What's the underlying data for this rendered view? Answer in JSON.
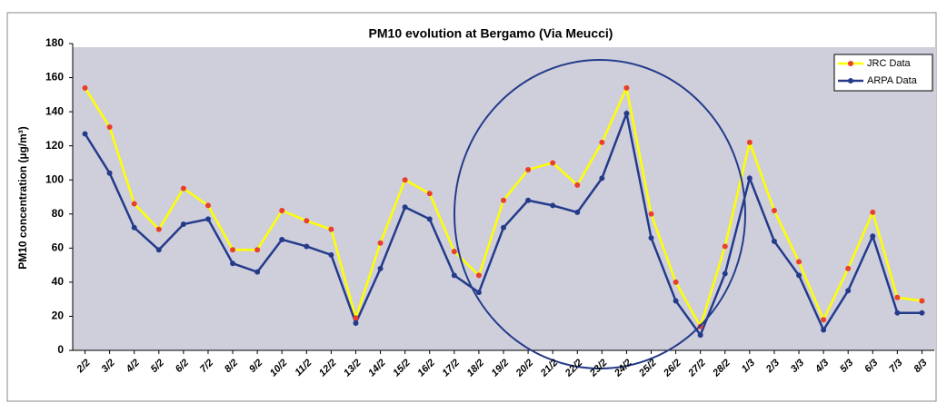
{
  "chart_data": {
    "type": "line",
    "title": "PM10 evolution at Bergamo (Via Meucci)",
    "y_label": "PM10 concentration (µg/m³)",
    "categories": [
      "2/2",
      "3/2",
      "4/2",
      "5/2",
      "6/2",
      "7/2",
      "8/2",
      "9/2",
      "10/2",
      "11/2",
      "12/2",
      "13/2",
      "14/2",
      "15/2",
      "16/2",
      "17/2",
      "18/2",
      "19/2",
      "20/2",
      "21/2",
      "22/2",
      "23/2",
      "24/2",
      "25/2",
      "26/2",
      "27/2",
      "28/2",
      "1/3",
      "2/3",
      "3/3",
      "4/3",
      "5/3",
      "6/3",
      "7/3",
      "8/3"
    ],
    "series": [
      {
        "name": "JRC Data",
        "color": "#ffff00",
        "marker_color": "#e8402a",
        "values": [
          154,
          131,
          86,
          71,
          95,
          85,
          59,
          59,
          82,
          76,
          71,
          19,
          63,
          100,
          92,
          58,
          44,
          88,
          106,
          110,
          97,
          122,
          154,
          80,
          40,
          14,
          61,
          122,
          82,
          52,
          18,
          48,
          81,
          31,
          29
        ]
      },
      {
        "name": "ARPA Data",
        "color": "#243b8a",
        "marker_color": "#243b8a",
        "values": [
          127,
          104,
          72,
          59,
          74,
          77,
          51,
          46,
          65,
          61,
          56,
          16,
          48,
          84,
          77,
          44,
          34,
          72,
          88,
          85,
          81,
          101,
          139,
          66,
          29,
          9,
          45,
          101,
          64,
          44,
          12,
          35,
          67,
          22,
          22
        ]
      }
    ],
    "ylim": [
      0,
      180
    ],
    "yticks": [
      0,
      20,
      40,
      60,
      80,
      100,
      120,
      140,
      160,
      180
    ],
    "grid": false,
    "legend": "upper right"
  }
}
